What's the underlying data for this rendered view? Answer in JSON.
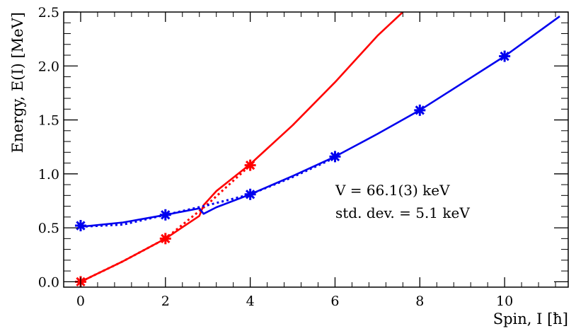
{
  "chart_data": {
    "type": "line",
    "xlabel": "Spin, I [ħ]",
    "ylabel": "Energy, E(I) [MeV]",
    "xlim": [
      -0.4,
      11.5
    ],
    "ylim": [
      -0.05,
      2.5
    ],
    "x_ticks": [
      "0",
      "2",
      "4",
      "6",
      "8",
      "10"
    ],
    "y_ticks": [
      "0.0",
      "0.5",
      "1.0",
      "1.5",
      "2.0",
      "2.5"
    ],
    "grid": false,
    "legend": "none",
    "annotations": [
      "V = 66.1(3) keV",
      "std. dev. = 5.1 keV"
    ],
    "series": [
      {
        "color": "#ff0000",
        "style": "solid",
        "points": [
          [
            0,
            0.0
          ],
          [
            1,
            0.19
          ],
          [
            2,
            0.4
          ],
          [
            2.8,
            0.61
          ],
          [
            2.9,
            0.71
          ],
          [
            3.2,
            0.84
          ],
          [
            4,
            1.09
          ],
          [
            5,
            1.45
          ],
          [
            6,
            1.85
          ],
          [
            7,
            2.28
          ],
          [
            7.6,
            2.5
          ]
        ]
      },
      {
        "color": "#ff0000",
        "style": "dotted",
        "points": [
          [
            0,
            0.0
          ],
          [
            1,
            0.19
          ],
          [
            2,
            0.4
          ],
          [
            3,
            0.72
          ],
          [
            4,
            1.08
          ]
        ]
      },
      {
        "color": "#0000ee",
        "style": "solid",
        "points": [
          [
            0,
            0.51
          ],
          [
            1,
            0.55
          ],
          [
            2,
            0.62
          ],
          [
            2.8,
            0.68
          ],
          [
            2.9,
            0.63
          ],
          [
            3.2,
            0.69
          ],
          [
            4,
            0.81
          ],
          [
            5,
            0.98
          ],
          [
            6,
            1.16
          ],
          [
            7,
            1.37
          ],
          [
            8,
            1.59
          ],
          [
            9,
            1.84
          ],
          [
            10,
            2.09
          ],
          [
            11.3,
            2.46
          ]
        ]
      },
      {
        "color": "#0000ee",
        "style": "dotted",
        "points": [
          [
            0,
            0.51
          ],
          [
            1,
            0.53
          ],
          [
            2,
            0.62
          ],
          [
            3,
            0.71
          ],
          [
            4,
            0.81
          ],
          [
            5,
            0.97
          ],
          [
            6,
            1.15
          ]
        ]
      }
    ],
    "markers": [
      {
        "color": "#ff0000",
        "points": [
          [
            0,
            0.0
          ],
          [
            2,
            0.4
          ],
          [
            4,
            1.08
          ]
        ]
      },
      {
        "color": "#0000ee",
        "points": [
          [
            0,
            0.52
          ],
          [
            2,
            0.62
          ],
          [
            4,
            0.81
          ],
          [
            6,
            1.16
          ],
          [
            8,
            1.59
          ],
          [
            10,
            2.09
          ]
        ]
      }
    ]
  }
}
